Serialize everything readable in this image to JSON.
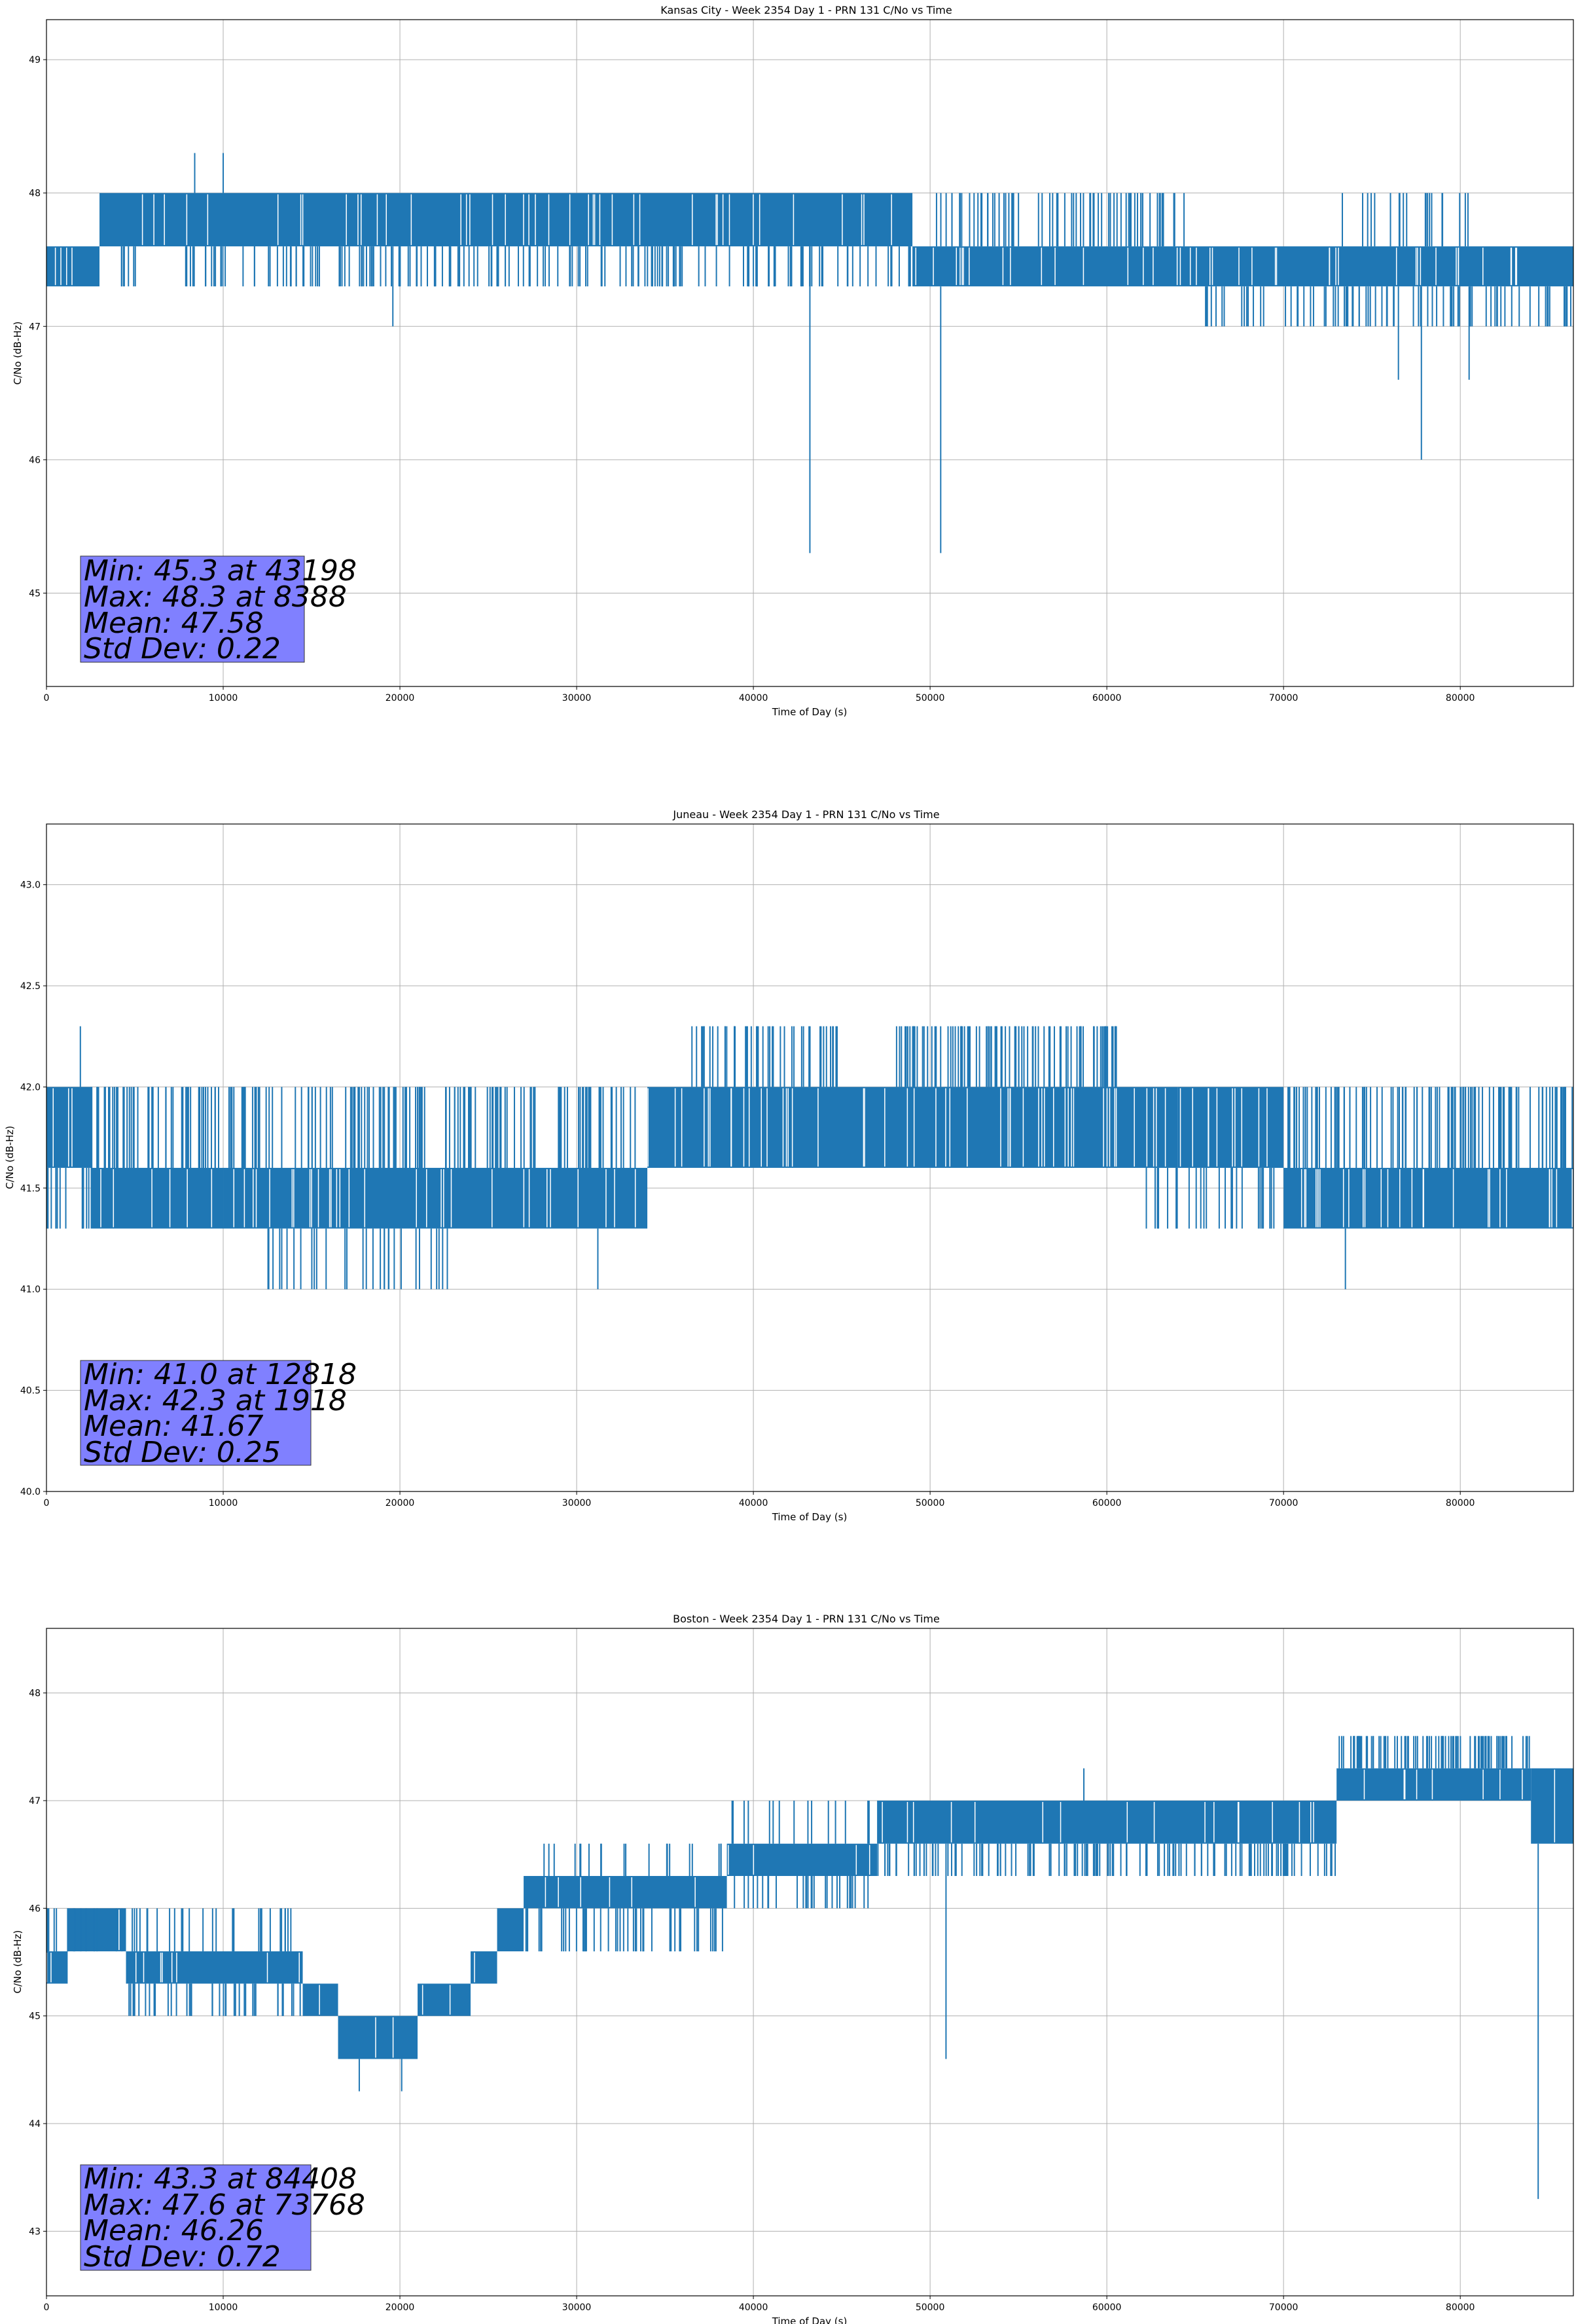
{
  "chart_data": [
    {
      "type": "line",
      "title": "Kansas City - Week 2354 Day 1 - PRN 131 C/No vs Time",
      "xlabel": "Time of Day (s)",
      "ylabel": "C/No (dB-Hz)",
      "xlim": [
        0,
        86400
      ],
      "ylim": [
        44.3,
        49.3
      ],
      "xticks": [
        0,
        10000,
        20000,
        30000,
        40000,
        50000,
        60000,
        70000,
        80000
      ],
      "yticks": [
        45,
        46,
        47,
        48,
        49
      ],
      "ytick_labels": [
        "45",
        "46",
        "47",
        "48",
        "49"
      ],
      "grid": true,
      "series_color": "#1f77b4",
      "bands": [
        {
          "x0": 0,
          "x1": 3000,
          "lo": 47.3,
          "hi": 47.6
        },
        {
          "x0": 3000,
          "x1": 49000,
          "lo": 47.6,
          "hi": 48.0
        },
        {
          "x0": 49000,
          "x1": 86400,
          "lo": 47.3,
          "hi": 47.6
        }
      ],
      "up_spikes": [
        {
          "x0": 3000,
          "x1": 49000,
          "to": 48.0,
          "n": 0
        },
        {
          "x0": 52000,
          "x1": 86400,
          "to": 47.6,
          "n": 0
        }
      ],
      "down_spikes": [
        {
          "x0": 4000,
          "x1": 49000,
          "to": 47.3,
          "n": 180
        },
        {
          "x0": 55000,
          "x1": 64000,
          "to": 47.3,
          "n": 0
        },
        {
          "x0": 65000,
          "x1": 86400,
          "to": 47.0,
          "n": 40
        }
      ],
      "extra_up": [
        {
          "x0": 50000,
          "x1": 64500,
          "to": 48.0,
          "n": 70
        },
        {
          "x0": 73000,
          "x1": 80500,
          "to": 48.0,
          "n": 20
        }
      ],
      "extra_down": [
        {
          "x0": 65500,
          "x1": 86400,
          "to": 47.0,
          "n": 40
        }
      ],
      "events": [
        {
          "x": 8388,
          "y": 48.3
        },
        {
          "x": 10000,
          "y": 48.3
        },
        {
          "x": 19600,
          "y": 47.0
        },
        {
          "x": 43198,
          "y": 45.3
        },
        {
          "x": 50600,
          "y": 45.3
        },
        {
          "x": 76500,
          "y": 46.6
        },
        {
          "x": 77800,
          "y": 46.0
        },
        {
          "x": 80500,
          "y": 46.6
        }
      ],
      "stats": {
        "min": "Min: 45.3 at 43198",
        "max": "Max: 48.3 at 8388",
        "mean": "Mean: 47.58",
        "std": "Std Dev: 0.22"
      }
    },
    {
      "type": "line",
      "title": "Juneau - Week 2354 Day 1 - PRN 131 C/No vs Time",
      "xlabel": "Time of Day (s)",
      "ylabel": "C/No (dB-Hz)",
      "xlim": [
        0,
        86400
      ],
      "ylim": [
        40.0,
        43.3
      ],
      "xticks": [
        0,
        10000,
        20000,
        30000,
        40000,
        50000,
        60000,
        70000,
        80000
      ],
      "yticks": [
        40.0,
        40.5,
        41.0,
        41.5,
        42.0,
        42.5,
        43.0
      ],
      "ytick_labels": [
        "40.0",
        "40.5",
        "41.0",
        "41.5",
        "42.0",
        "42.5",
        "43.0"
      ],
      "grid": true,
      "series_color": "#1f77b4",
      "bands": [
        {
          "x0": 0,
          "x1": 2500,
          "lo": 41.6,
          "hi": 42.0
        },
        {
          "x0": 2500,
          "x1": 10000,
          "lo": 41.3,
          "hi": 41.6
        },
        {
          "x0": 10000,
          "x1": 34000,
          "lo": 41.3,
          "hi": 41.6
        },
        {
          "x0": 34000,
          "x1": 64000,
          "lo": 41.6,
          "hi": 42.0
        },
        {
          "x0": 64000,
          "x1": 70000,
          "lo": 41.6,
          "hi": 42.0
        },
        {
          "x0": 70000,
          "x1": 86400,
          "lo": 41.3,
          "hi": 41.6
        }
      ],
      "up_spikes": [
        {
          "x0": 2500,
          "x1": 34000,
          "to": 42.0,
          "n": 180
        },
        {
          "x0": 70000,
          "x1": 86400,
          "to": 42.0,
          "n": 110
        }
      ],
      "down_spikes": [
        {
          "x0": 0,
          "x1": 10000,
          "to": 41.3,
          "n": 60
        },
        {
          "x0": 34000,
          "x1": 70000,
          "to": 41.6,
          "n": 0
        },
        {
          "x0": 62000,
          "x1": 70000,
          "to": 41.3,
          "n": 25
        }
      ],
      "extra_up": [
        {
          "x0": 36500,
          "x1": 45000,
          "to": 42.3,
          "n": 45
        },
        {
          "x0": 48000,
          "x1": 61000,
          "to": 42.3,
          "n": 90
        }
      ],
      "extra_down": [
        {
          "x0": 12500,
          "x1": 23000,
          "to": 41.0,
          "n": 30
        }
      ],
      "events": [
        {
          "x": 1918,
          "y": 42.3
        },
        {
          "x": 12818,
          "y": 41.0
        },
        {
          "x": 31200,
          "y": 41.0
        },
        {
          "x": 73500,
          "y": 41.0
        }
      ],
      "stats": {
        "min": "Min: 41.0 at 12818",
        "max": "Max: 42.3 at 1918",
        "mean": "Mean: 41.67",
        "std": "Std Dev: 0.25"
      }
    },
    {
      "type": "line",
      "title": "Boston - Week 2354 Day 1 - PRN 131 C/No vs Time",
      "xlabel": "Time of Day (s)",
      "ylabel": "C/No (dB-Hz)",
      "xlim": [
        0,
        86400
      ],
      "ylim": [
        42.4,
        48.6
      ],
      "xticks": [
        0,
        10000,
        20000,
        30000,
        40000,
        50000,
        60000,
        70000,
        80000
      ],
      "yticks": [
        43,
        44,
        45,
        46,
        47,
        48
      ],
      "ytick_labels": [
        "43",
        "44",
        "45",
        "46",
        "47",
        "48"
      ],
      "grid": true,
      "series_color": "#1f77b4",
      "bands": [
        {
          "x0": 0,
          "x1": 1200,
          "lo": 45.3,
          "hi": 45.6
        },
        {
          "x0": 1200,
          "x1": 4500,
          "lo": 45.6,
          "hi": 46.0
        },
        {
          "x0": 4500,
          "x1": 14500,
          "lo": 45.3,
          "hi": 45.6
        },
        {
          "x0": 14500,
          "x1": 16500,
          "lo": 45.0,
          "hi": 45.3
        },
        {
          "x0": 16500,
          "x1": 21000,
          "lo": 44.6,
          "hi": 45.0
        },
        {
          "x0": 21000,
          "x1": 24000,
          "lo": 45.0,
          "hi": 45.3
        },
        {
          "x0": 24000,
          "x1": 25500,
          "lo": 45.3,
          "hi": 45.6
        },
        {
          "x0": 25500,
          "x1": 27000,
          "lo": 45.6,
          "hi": 46.0
        },
        {
          "x0": 27000,
          "x1": 38500,
          "lo": 46.0,
          "hi": 46.3
        },
        {
          "x0": 38500,
          "x1": 47000,
          "lo": 46.3,
          "hi": 46.6
        },
        {
          "x0": 47000,
          "x1": 73000,
          "lo": 46.6,
          "hi": 47.0
        },
        {
          "x0": 73000,
          "x1": 84000,
          "lo": 47.0,
          "hi": 47.3
        },
        {
          "x0": 84000,
          "x1": 86400,
          "lo": 46.6,
          "hi": 47.3
        }
      ],
      "up_spikes": [
        {
          "x0": 0,
          "x1": 14500,
          "to": 46.0,
          "n": 40
        },
        {
          "x0": 27000,
          "x1": 38500,
          "to": 46.6,
          "n": 20
        },
        {
          "x0": 38500,
          "x1": 47000,
          "to": 47.0,
          "n": 15
        }
      ],
      "down_spikes": [
        {
          "x0": 4500,
          "x1": 14500,
          "to": 45.0,
          "n": 40
        },
        {
          "x0": 27000,
          "x1": 38500,
          "to": 45.6,
          "n": 45
        },
        {
          "x0": 38500,
          "x1": 47000,
          "to": 46.0,
          "n": 30
        },
        {
          "x0": 47000,
          "x1": 73000,
          "to": 46.3,
          "n": 130
        }
      ],
      "extra_up": [
        {
          "x0": 73000,
          "x1": 84000,
          "to": 47.6,
          "n": 90
        }
      ],
      "extra_down": [
        {
          "x0": 16500,
          "x1": 21000,
          "to": 44.6,
          "n": 0
        }
      ],
      "events": [
        {
          "x": 1200,
          "y": 46.0
        },
        {
          "x": 13300,
          "y": 46.0
        },
        {
          "x": 17700,
          "y": 44.3
        },
        {
          "x": 20100,
          "y": 44.3
        },
        {
          "x": 50900,
          "y": 44.6
        },
        {
          "x": 58700,
          "y": 47.3
        },
        {
          "x": 84408,
          "y": 43.3
        }
      ],
      "stats": {
        "min": "Min: 43.3 at 84408",
        "max": "Max: 47.6 at 73768",
        "mean": "Mean: 46.26",
        "std": "Std Dev: 0.72"
      }
    }
  ]
}
